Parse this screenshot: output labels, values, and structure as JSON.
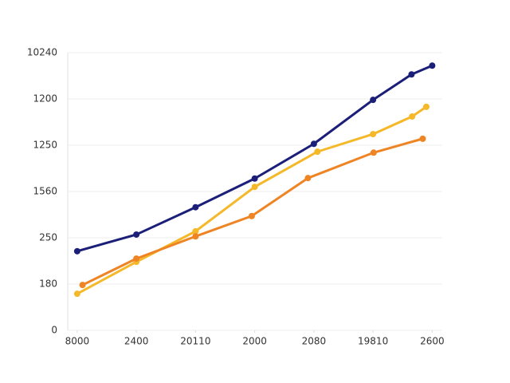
{
  "chart_data": {
    "type": "line",
    "x": [],
    "xlim": [
      -0.16,
      6.17
    ],
    "xticks": [
      {
        "value": 0,
        "label": "8000"
      },
      {
        "value": 1,
        "label": "2400"
      },
      {
        "value": 2,
        "label": "20110"
      },
      {
        "value": 3,
        "label": "2000"
      },
      {
        "value": 4,
        "label": "2080"
      },
      {
        "value": 5,
        "label": "19810"
      },
      {
        "value": 6,
        "label": "2600"
      }
    ],
    "ylim": [
      0,
      6
    ],
    "yticks": [
      {
        "value": 0,
        "label": "0"
      },
      {
        "value": 1,
        "label": "180"
      },
      {
        "value": 2,
        "label": "250"
      },
      {
        "value": 3,
        "label": "1560"
      },
      {
        "value": 4,
        "label": "1250"
      },
      {
        "value": 5,
        "label": "1200"
      },
      {
        "value": 6,
        "label": "10240"
      }
    ],
    "grid": true,
    "series": [
      {
        "color": "#1b1f78",
        "x": [
          0,
          1,
          2,
          3,
          4,
          5,
          5.65,
          6
        ],
        "values": [
          1.71,
          2.07,
          2.66,
          3.28,
          4.03,
          4.98,
          5.53,
          5.72
        ]
      },
      {
        "color": "#f5b829",
        "x": [
          0,
          1,
          2,
          3,
          4.06,
          5,
          5.66,
          5.9
        ],
        "values": [
          0.79,
          1.48,
          2.14,
          3.1,
          3.86,
          4.24,
          4.62,
          4.83
        ]
      },
      {
        "color": "#ee8424",
        "x": [
          0.09,
          1,
          2,
          2.95,
          3.9,
          5.01,
          5.84
        ],
        "values": [
          0.98,
          1.55,
          2.03,
          2.47,
          3.29,
          3.84,
          4.14
        ]
      }
    ]
  }
}
